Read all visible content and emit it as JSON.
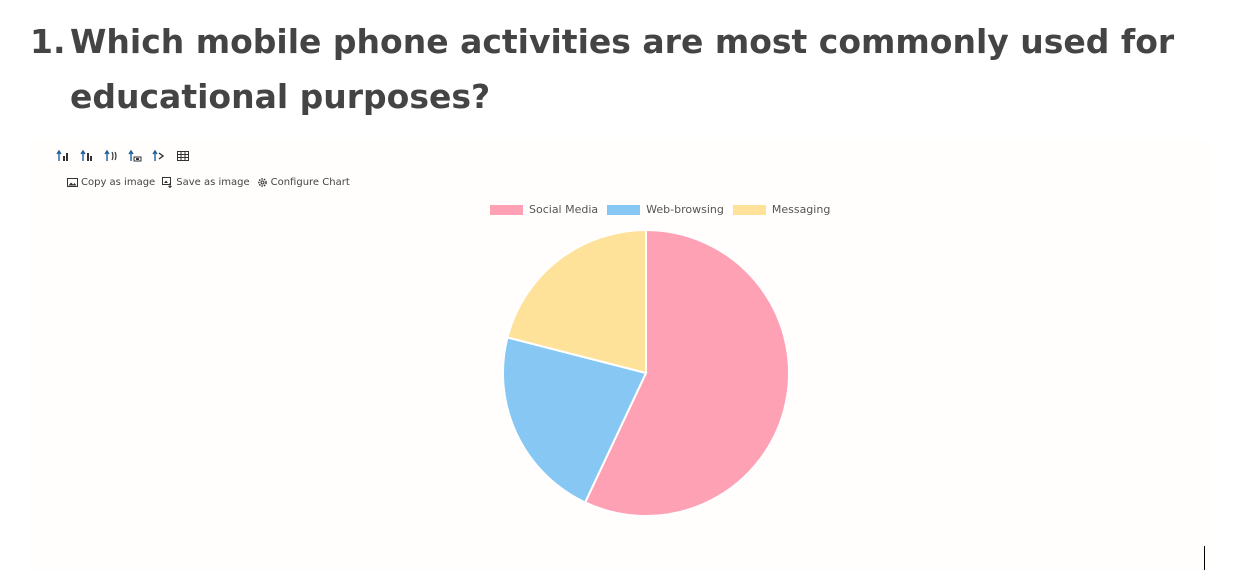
{
  "question": {
    "number": "1.",
    "line1": "Which mobile phone activities are most commonly used for",
    "line2": "educational purposes?"
  },
  "toolbar": {
    "icons": [
      "sort-ascending-icon",
      "sort-descending-icon",
      "swap-axes-icon",
      "column-chart-icon",
      "rotate-icon",
      "table-icon"
    ]
  },
  "actions": {
    "copy_label": "Copy as image",
    "save_label": "Save as image",
    "configure_label": "Configure Chart"
  },
  "chart_data": {
    "type": "pie",
    "categories": [
      "Social Media",
      "Web-browsing",
      "Messaging"
    ],
    "values": [
      57,
      22,
      21
    ],
    "colors": [
      "#ffa1b5",
      "#86c7f3",
      "#ffe29a"
    ],
    "legend": "top"
  }
}
